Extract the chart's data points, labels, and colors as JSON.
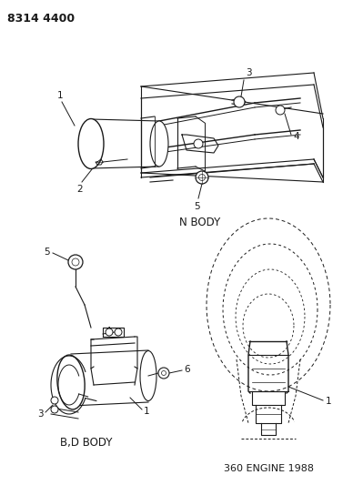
{
  "title": "8314 4400",
  "background_color": "#ffffff",
  "text_color": "#1a1a1a",
  "line_color": "#1a1a1a",
  "n_body_label": "N BODY",
  "bd_body_label": "B,D BODY",
  "engine_label": "360 ENGINE 1988"
}
